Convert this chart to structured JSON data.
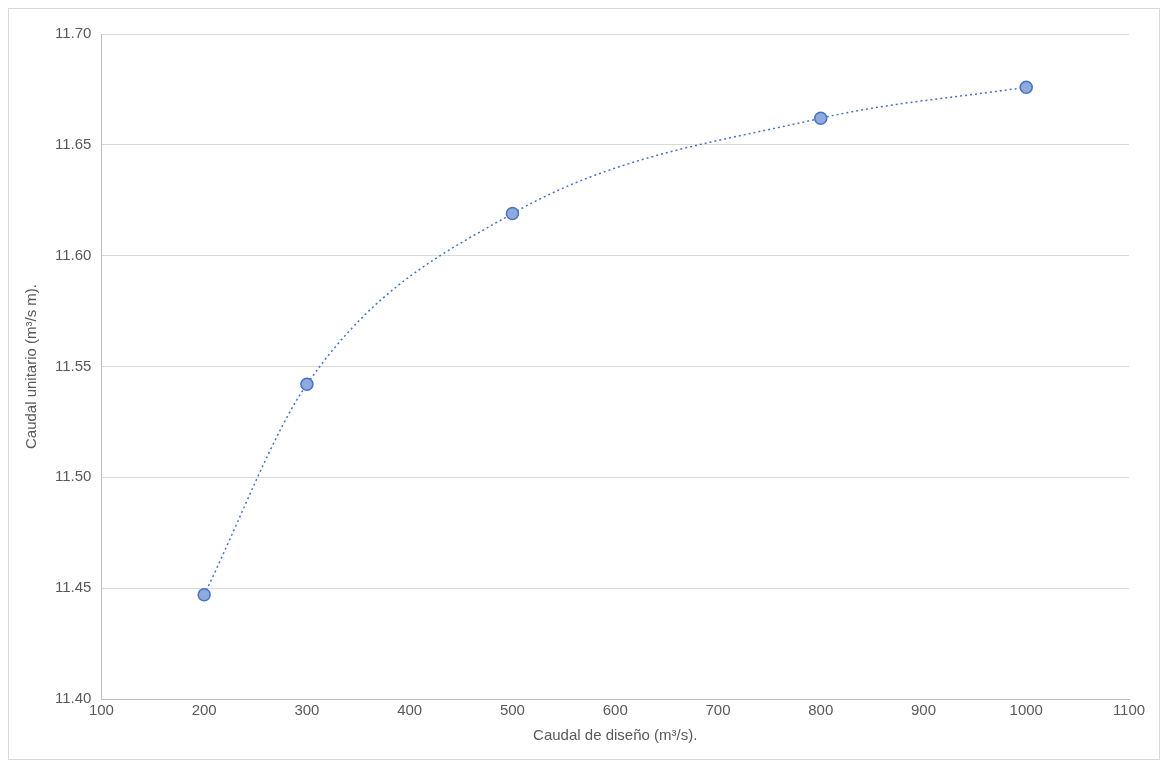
{
  "chart_data": {
    "type": "line",
    "xlabel": "Caudal de diseño (m³/s).",
    "ylabel": "Caudal unitario (m³/s m).",
    "x": [
      200,
      300,
      500,
      800,
      1000
    ],
    "series": [
      {
        "color": "#4472c4",
        "values": [
          11.447,
          11.542,
          11.619,
          11.662,
          11.676
        ]
      }
    ],
    "xlim": [
      100,
      1100
    ],
    "xticks": [
      100,
      200,
      300,
      400,
      500,
      600,
      700,
      800,
      900,
      1000,
      1100
    ],
    "ylim": [
      11.4,
      11.7
    ],
    "yticks": [
      {
        "value": 11.4,
        "label": "11.40"
      },
      {
        "value": 11.45,
        "label": "11.45"
      },
      {
        "value": 11.5,
        "label": "11.50"
      },
      {
        "value": 11.55,
        "label": "11.55"
      },
      {
        "value": 11.6,
        "label": "11.60"
      },
      {
        "value": 11.65,
        "label": "11.65"
      },
      {
        "value": 11.7,
        "label": "11.70"
      }
    ],
    "grid": "y",
    "legend": false,
    "marker": "circle",
    "line_style": "dotted"
  }
}
